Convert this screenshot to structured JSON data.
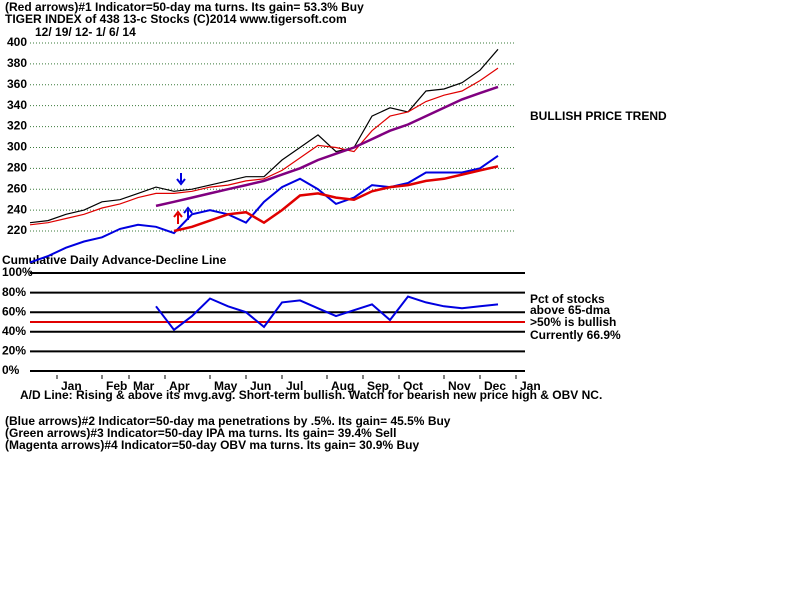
{
  "header": [
    "(Red arrows)#1 Indicator=50-day ma turns. Its gain= 53.3% Buy",
    "TIGER INDEX of  438 13-c Stocks  (C)2014  www.tigersoft.com"
  ],
  "chart_data": [
    {
      "type": "line",
      "subtitle": "12/ 19/ 12-  1/ 6/ 14",
      "annotations": [
        "BULLISH PRICE TREND",
        "Cumulative Daily Advance-Decline Line"
      ],
      "xlim": [
        0,
        54
      ],
      "ylim": [
        180,
        400
      ],
      "yticks": [
        220,
        240,
        260,
        280,
        300,
        320,
        340,
        360,
        380,
        400
      ],
      "grid": true,
      "x": [
        0,
        2,
        4,
        6,
        8,
        10,
        12,
        14,
        16,
        18,
        20,
        22,
        24,
        26,
        28,
        30,
        32,
        34,
        36,
        38,
        40,
        42,
        44,
        46,
        48,
        50,
        52
      ],
      "series": [
        {
          "color": "#000000",
          "values": [
            228,
            230,
            236,
            240,
            248,
            250,
            256,
            262,
            258,
            260,
            264,
            268,
            272,
            272,
            288,
            300,
            312,
            296,
            300,
            330,
            338,
            334,
            354,
            356,
            362,
            374,
            394
          ]
        },
        {
          "color": "#e00000",
          "values": [
            226,
            228,
            232,
            236,
            242,
            246,
            252,
            256,
            256,
            258,
            262,
            264,
            268,
            270,
            278,
            290,
            302,
            300,
            296,
            316,
            330,
            334,
            344,
            350,
            354,
            364,
            376
          ]
        },
        {
          "color": "#800080",
          "values": [
            null,
            null,
            null,
            null,
            null,
            null,
            null,
            244,
            248,
            252,
            256,
            260,
            264,
            268,
            274,
            280,
            288,
            294,
            300,
            308,
            316,
            322,
            330,
            338,
            346,
            352,
            358
          ]
        },
        {
          "color": "#0000e0",
          "values": [
            190,
            196,
            204,
            210,
            214,
            222,
            226,
            224,
            218,
            236,
            240,
            236,
            228,
            248,
            262,
            270,
            260,
            246,
            252,
            264,
            262,
            266,
            276,
            276,
            276,
            280,
            292
          ]
        },
        {
          "color": "#e00000",
          "values": [
            null,
            null,
            null,
            null,
            null,
            null,
            null,
            null,
            220,
            224,
            230,
            236,
            238,
            228,
            240,
            254,
            256,
            252,
            250,
            258,
            262,
            264,
            268,
            270,
            274,
            278,
            282
          ]
        }
      ]
    },
    {
      "type": "line",
      "annotations": [
        "Pct of stocks",
        "above 65-dma",
        ">50% is bullish",
        "Currently  66.9%"
      ],
      "xlim": [
        0,
        54
      ],
      "ylim": [
        0,
        100
      ],
      "yticks": [
        {
          "value": 0,
          "label": "0%"
        },
        {
          "value": 20,
          "label": "20%"
        },
        {
          "value": 40,
          "label": "40%"
        },
        {
          "value": 60,
          "label": "60%"
        },
        {
          "value": 80,
          "label": "80%"
        },
        {
          "value": 100,
          "label": "100%"
        }
      ],
      "reference_line": {
        "value": 50,
        "color": "#e00000"
      },
      "xticks": [
        {
          "value": 3,
          "label": "Jan"
        },
        {
          "value": 8,
          "label": "Feb"
        },
        {
          "value": 11,
          "label": "Mar"
        },
        {
          "value": 15,
          "label": "Apr"
        },
        {
          "value": 20,
          "label": "May"
        },
        {
          "value": 24,
          "label": "Jun"
        },
        {
          "value": 28,
          "label": "Jul"
        },
        {
          "value": 33,
          "label": "Aug"
        },
        {
          "value": 37,
          "label": "Sep"
        },
        {
          "value": 41,
          "label": "Oct"
        },
        {
          "value": 46,
          "label": "Nov"
        },
        {
          "value": 50,
          "label": "Dec"
        },
        {
          "value": 54,
          "label": "Jan"
        }
      ],
      "x": [
        14,
        16,
        18,
        20,
        22,
        24,
        26,
        28,
        30,
        32,
        34,
        36,
        38,
        40,
        42,
        44,
        46,
        48,
        50,
        52
      ],
      "series": [
        {
          "color": "#0000e0",
          "values": [
            66,
            42,
            56,
            74,
            66,
            60,
            45,
            70,
            72,
            64,
            56,
            62,
            68,
            52,
            76,
            70,
            66,
            64,
            66,
            68
          ]
        }
      ]
    }
  ],
  "notes": [
    "A/D Line: Rising & above its mvg.avg. Short-term bullish. Watch for bearish new price high & OBV NC.",
    "(Blue arrows)#2 Indicator=50-day ma penetrations by .5%. Its gain= 45.5% Buy",
    "(Green arrows)#3 Indicator=50-day IPA ma turns. Its gain= 39.4% Sell",
    "(Magenta arrows)#4 Indicator=50-day OBV ma turns. Its gain= 30.9% Buy"
  ]
}
